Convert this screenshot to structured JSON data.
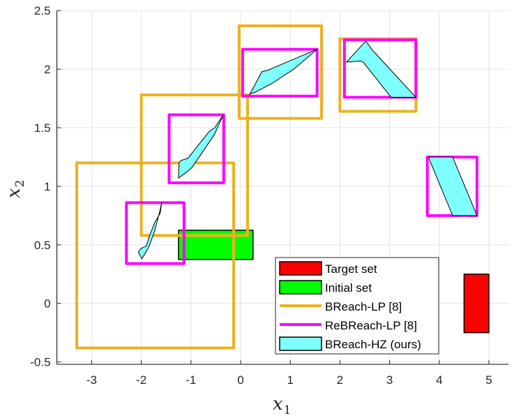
{
  "chart_data": {
    "type": "scatter",
    "subtype": "reachable-set-boxes",
    "title": "",
    "xlabel": "x_1",
    "ylabel": "x_2",
    "xlim": [
      -3.7,
      5.4
    ],
    "ylim": [
      -0.52,
      2.5
    ],
    "xticks": [
      -3,
      -2,
      -1,
      0,
      1,
      2,
      3,
      4,
      5
    ],
    "yticks": [
      -0.5,
      0,
      0.5,
      1,
      1.5,
      2,
      2.5
    ],
    "xtick_labels": [
      "-3",
      "-2",
      "-1",
      "0",
      "1",
      "2",
      "3",
      "4",
      "5"
    ],
    "ytick_labels": [
      "-0.5",
      "0",
      "0.5",
      "1",
      "1.5",
      "2",
      "2.5"
    ],
    "grid": true,
    "legend_position": "lower-right (inside)",
    "legend": [
      {
        "label": "Target set",
        "style": "patch",
        "color": "#ff0000"
      },
      {
        "label": "Initial set",
        "style": "patch",
        "color": "#00ff00"
      },
      {
        "label": "BReach-LP [8]",
        "style": "line",
        "color": "#edb120"
      },
      {
        "label": "ReBReach-LP [8]",
        "style": "line",
        "color": "#ff00ff"
      },
      {
        "label": "BReach-HZ (ours)",
        "style": "patch",
        "color": "#80ffff"
      }
    ],
    "target_set": {
      "x": [
        4.5,
        5.0
      ],
      "y": [
        -0.25,
        0.25
      ]
    },
    "initial_set": {
      "x": [
        -1.25,
        0.25
      ],
      "y": [
        0.375,
        0.625
      ]
    },
    "series": [
      {
        "name": "BReach-LP [8]",
        "color": "#edb120",
        "boxes": [
          {
            "x": [
              -3.3,
              -0.14
            ],
            "y": [
              -0.38,
              1.2
            ]
          },
          {
            "x": [
              -2.0,
              0.14
            ],
            "y": [
              0.58,
              1.78
            ]
          },
          {
            "x": [
              -0.03,
              1.63
            ],
            "y": [
              1.58,
              2.37
            ]
          },
          {
            "x": [
              2.0,
              3.53
            ],
            "y": [
              1.64,
              2.26
            ]
          }
        ]
      },
      {
        "name": "ReBReach-LP [8]",
        "color": "#ff00ff",
        "boxes": [
          {
            "x": [
              -2.3,
              -1.14
            ],
            "y": [
              0.34,
              0.86
            ]
          },
          {
            "x": [
              -1.44,
              -0.34
            ],
            "y": [
              1.03,
              1.61
            ]
          },
          {
            "x": [
              0.04,
              1.54
            ],
            "y": [
              1.77,
              2.17
            ]
          },
          {
            "x": [
              2.09,
              3.53
            ],
            "y": [
              1.76,
              2.25
            ]
          },
          {
            "x": [
              3.76,
              4.76
            ],
            "y": [
              0.75,
              1.25
            ]
          }
        ]
      },
      {
        "name": "BReach-HZ (ours)",
        "color": "#80ffff",
        "polygons": [
          [
            [
              -1.59,
              0.86
            ],
            [
              -1.62,
              0.77
            ],
            [
              -1.73,
              0.69
            ],
            [
              -1.84,
              0.57
            ],
            [
              -1.9,
              0.49
            ],
            [
              -2.0,
              0.47
            ],
            [
              -2.06,
              0.44
            ],
            [
              -1.99,
              0.38
            ],
            [
              -1.89,
              0.45
            ],
            [
              -1.84,
              0.49
            ],
            [
              -1.73,
              0.62
            ],
            [
              -1.62,
              0.8
            ]
          ],
          [
            [
              -0.35,
              1.61
            ],
            [
              -0.52,
              1.5
            ],
            [
              -0.63,
              1.47
            ],
            [
              -1.06,
              1.24
            ],
            [
              -1.2,
              1.22
            ],
            [
              -1.24,
              1.2
            ],
            [
              -1.25,
              1.07
            ],
            [
              -1.06,
              1.13
            ],
            [
              -0.98,
              1.16
            ],
            [
              -0.53,
              1.44
            ]
          ],
          [
            [
              1.54,
              2.17
            ],
            [
              1.07,
              2.0
            ],
            [
              0.64,
              1.88
            ],
            [
              0.28,
              1.8
            ],
            [
              0.18,
              1.79
            ],
            [
              0.18,
              1.78
            ],
            [
              0.43,
              1.98
            ],
            [
              0.55,
              1.99
            ],
            [
              0.65,
              2.01
            ]
          ],
          [
            [
              2.13,
              2.06
            ],
            [
              2.52,
              2.24
            ],
            [
              2.66,
              2.16
            ],
            [
              3.53,
              1.76
            ],
            [
              3.03,
              1.76
            ],
            [
              2.47,
              2.06
            ],
            [
              2.41,
              2.07
            ]
          ],
          [
            [
              3.78,
              1.25
            ],
            [
              4.27,
              1.25
            ],
            [
              4.76,
              0.75
            ],
            [
              4.27,
              0.75
            ]
          ]
        ]
      }
    ]
  },
  "plot": {
    "xlabel_main": "x",
    "xlabel_sub": "1",
    "ylabel_main": "x",
    "ylabel_sub": "2"
  },
  "legend": {
    "items": [
      "Target set",
      "Initial set",
      "BReach-LP [8]",
      "ReBReach-LP [8]",
      "BReach-HZ (ours)"
    ]
  }
}
